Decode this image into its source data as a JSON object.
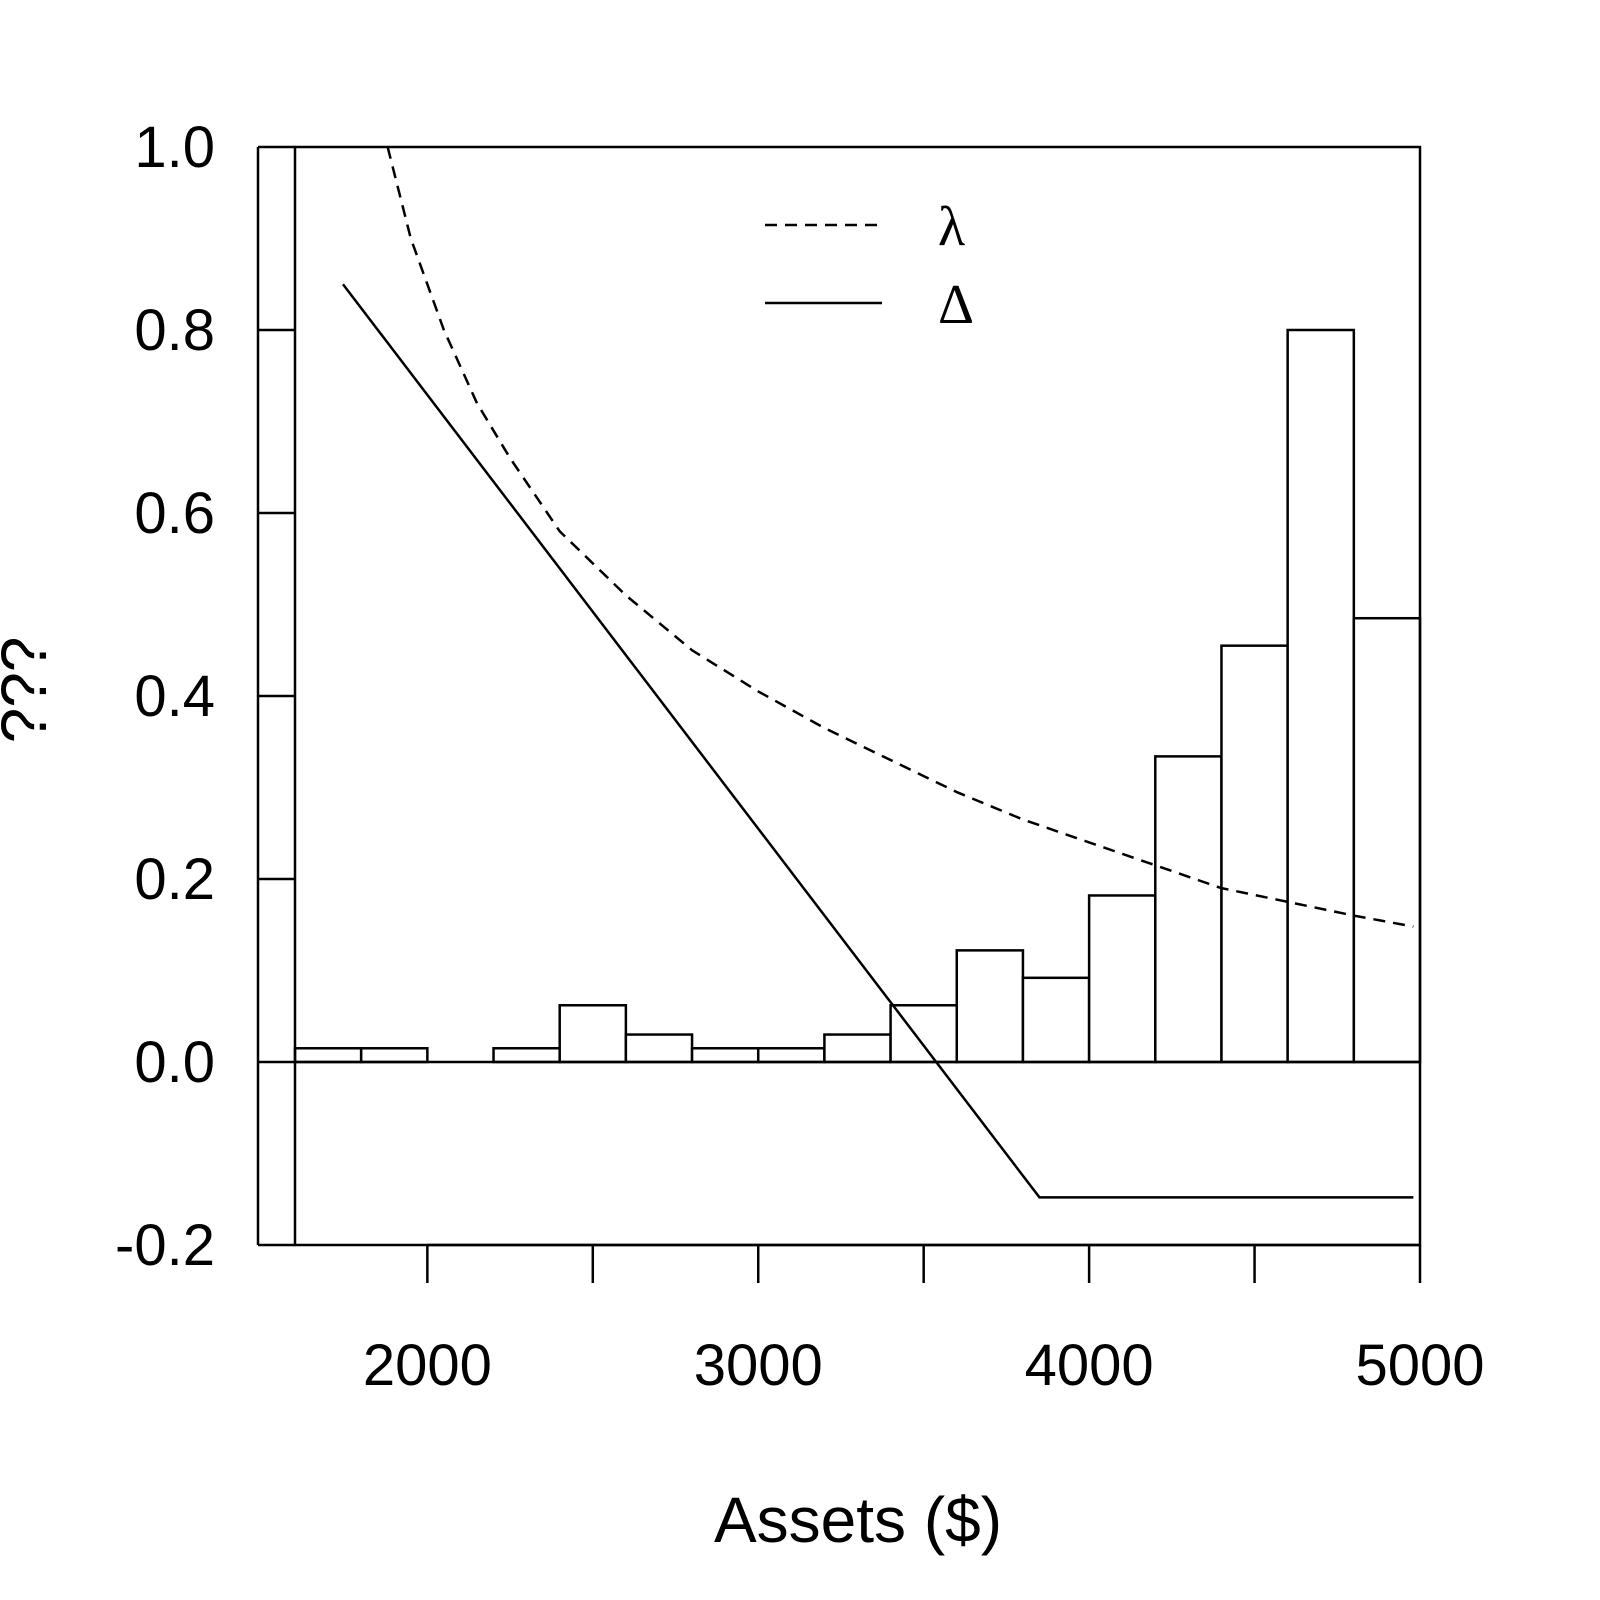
{
  "chart_data": {
    "type": "bar",
    "xlabel": "Assets ($)",
    "ylabel": "???",
    "xlim": [
      1600,
      5000
    ],
    "ylim": [
      -0.2,
      1.0
    ],
    "x_ticks": [
      2000,
      3000,
      4000,
      5000
    ],
    "x_minor_ticks": [
      2000,
      2500,
      3000,
      3500,
      4000,
      4500,
      5000
    ],
    "y_ticks": [
      1.0,
      0.8,
      0.6,
      0.4,
      0.2,
      0.0,
      -0.2
    ],
    "y_tick_labels": [
      "1.0",
      "0.8",
      "0.6",
      "0.4",
      "0.2",
      "0.0",
      "-0.2"
    ],
    "legend_placement": "top-center",
    "histogram": {
      "bin_edges": [
        1600,
        1800,
        2000,
        2200,
        2400,
        2600,
        2800,
        3000,
        3200,
        3400,
        3600,
        3800,
        4000,
        4200,
        4400,
        4600,
        4800,
        5000
      ],
      "values": [
        0.015,
        0.015,
        0.0,
        0.015,
        0.062,
        0.03,
        0.015,
        0.015,
        0.03,
        0.062,
        0.122,
        0.092,
        0.182,
        0.334,
        0.455,
        0.8,
        0.485
      ]
    },
    "series": [
      {
        "name": "λ",
        "style": "dashed",
        "x": [
          1880,
          1950,
          2050,
          2150,
          2250,
          2400,
          2600,
          2800,
          3000,
          3200,
          3400,
          3600,
          3800,
          4000,
          4200,
          4400,
          4600,
          4800,
          4980
        ],
        "y": [
          1.0,
          0.9,
          0.8,
          0.72,
          0.66,
          0.58,
          0.51,
          0.45,
          0.405,
          0.365,
          0.33,
          0.295,
          0.265,
          0.24,
          0.215,
          0.19,
          0.175,
          0.16,
          0.148
        ]
      },
      {
        "name": "Δ",
        "style": "solid",
        "x": [
          1745,
          3850,
          4980
        ],
        "y": [
          0.85,
          -0.148,
          -0.148
        ]
      }
    ]
  }
}
